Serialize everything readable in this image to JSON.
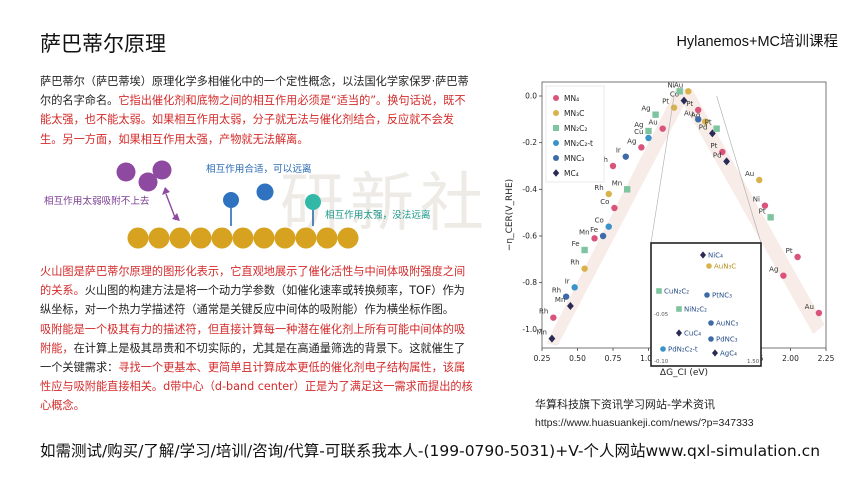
{
  "header": {
    "title": "萨巴蒂尔原理",
    "brand": "Hylanemos+MC培训课程"
  },
  "paragraph1": {
    "normal": "萨巴蒂尔（萨巴蒂埃）原理化学多相催化中的一个定性概念，以法国化学家保罗·萨巴蒂尔的名字命名。",
    "red": "它指出催化剂和底物之间的相互作用必须是“适当的”。换句话说，既不能太强，也不能太弱。如果相互作用太弱，分子就无法与催化剂结合，反应就不会发生。另一方面，如果相互作用太强，产物就无法解离。"
  },
  "illustration": {
    "label_weak": "相互作用太弱吸附不上去",
    "label_suitable": "相互作用合适，可以远离",
    "label_strong": "相互作用太强，没法远离",
    "colors": {
      "surface": "#d6a21f",
      "weak": "#8e4aa0",
      "suitable": "#2f72c0",
      "strong": "#33b8a8",
      "label_blue": "#2a6ab3",
      "label_purple": "#7b3d91",
      "label_teal": "#1f9a8c"
    }
  },
  "paragraph2": {
    "red1": "火山图是萨巴蒂尔原理的图形化表示，它直观地展示了催化活性与中间体吸附强度之间的关系。",
    "normal1": "火山图的构建方法是将一个动力学参数（如催化速率或转换频率，TOF）作为纵坐标，对一个热力学描述符（通常是关键反应中间体的吸附能）作为横坐标作图。",
    "red2": "吸附能是一个极其有力的描述符，但直接计算每一种潜在催化剂上所有可能中间体的吸附能，",
    "normal2": "在计算上是极其昂贵和不切实际的，尤其是在高通量筛选的背景下。这就催生了一个关键需求：",
    "red3": "寻找一个更基本、更简单且计算成本更低的催化剂电子结构属性，该属性应与吸附能直接相关。d带中心（d-band center）正是为了满足这一需求而提出的核心概念。"
  },
  "chart_data": {
    "type": "scatter",
    "xlabel": "ΔG_CI (eV)",
    "ylabel": "−η_CER(V_RHE)",
    "xlim": [
      0.25,
      2.25
    ],
    "ylim": [
      -1.08,
      0.06
    ],
    "xticks": [
      "0.25",
      "0.50",
      "0.75",
      "1.00",
      "1.25",
      "1.50",
      "1.75",
      "2.00",
      "2.25"
    ],
    "yticks": [
      "0.0",
      "-0.2",
      "-0.4",
      "-0.6",
      "-0.8",
      "-1.0"
    ],
    "legend": [
      {
        "name": "MN4",
        "label": "MN₄",
        "color": "#d9537a",
        "marker": "circle"
      },
      {
        "name": "MN3C",
        "label": "MN₃C",
        "color": "#d8b24a",
        "marker": "circle"
      },
      {
        "name": "MN2C2",
        "label": "MN₂C₂",
        "color": "#7fc4a0",
        "marker": "square"
      },
      {
        "name": "MN2C2-t",
        "label": "MN₂C₂-t",
        "color": "#3a93c9",
        "marker": "circle"
      },
      {
        "name": "MNC3",
        "label": "MNC₃",
        "color": "#3f6aa8",
        "marker": "circle"
      },
      {
        "name": "MC4",
        "label": "MC₄",
        "color": "#2b2a55",
        "marker": "diamond"
      }
    ],
    "points": [
      {
        "s": "MC4",
        "x": 0.32,
        "y": -1.04,
        "t": "Mn"
      },
      {
        "s": "MN4",
        "x": 0.33,
        "y": -0.95,
        "t": "Rh"
      },
      {
        "s": "MNC3",
        "x": 0.42,
        "y": -0.86,
        "t": "Rh"
      },
      {
        "s": "MC4",
        "x": 0.45,
        "y": -0.9,
        "t": "Mn"
      },
      {
        "s": "MN2C2-t",
        "x": 0.48,
        "y": -0.82,
        "t": "Ir"
      },
      {
        "s": "MN3C",
        "x": 0.55,
        "y": -0.74,
        "t": "Rh"
      },
      {
        "s": "MN2C2",
        "x": 0.55,
        "y": -0.66,
        "t": "Fe"
      },
      {
        "s": "MN4",
        "x": 0.62,
        "y": -0.61,
        "t": "Mn"
      },
      {
        "s": "MNC3",
        "x": 0.68,
        "y": -0.6,
        "t": "Fe"
      },
      {
        "s": "MN2C2-t",
        "x": 0.72,
        "y": -0.56,
        "t": "Co"
      },
      {
        "s": "MN4",
        "x": 0.76,
        "y": -0.48,
        "t": "Co"
      },
      {
        "s": "MN3C",
        "x": 0.72,
        "y": -0.42,
        "t": "Rh"
      },
      {
        "s": "MN2C2",
        "x": 0.85,
        "y": -0.4,
        "t": "Mn"
      },
      {
        "s": "MN4",
        "x": 0.75,
        "y": -0.3,
        "t": "Rh"
      },
      {
        "s": "MNC3",
        "x": 0.84,
        "y": -0.26,
        "t": "Ir"
      },
      {
        "s": "MN4",
        "x": 0.95,
        "y": -0.22,
        "t": "Ag"
      },
      {
        "s": "MN2C2-t",
        "x": 1.0,
        "y": -0.18,
        "t": "Cu"
      },
      {
        "s": "MN2C2",
        "x": 1.0,
        "y": -0.15,
        "t": "Ag"
      },
      {
        "s": "MN4",
        "x": 1.1,
        "y": -0.14,
        "t": "Au"
      },
      {
        "s": "MN2C2",
        "x": 1.05,
        "y": -0.08,
        "t": "Ag"
      },
      {
        "s": "MN3C",
        "x": 1.18,
        "y": -0.05,
        "t": "Pt"
      },
      {
        "s": "MC4",
        "x": 1.25,
        "y": -0.02,
        "t": "Co"
      },
      {
        "s": "MN2C2",
        "x": 1.22,
        "y": 0.02,
        "t": "Ni"
      },
      {
        "s": "MN3C",
        "x": 1.28,
        "y": 0.02,
        "t": "Au"
      },
      {
        "s": "MN4",
        "x": 1.35,
        "y": -0.06,
        "t": "Pt"
      },
      {
        "s": "MN3C",
        "x": 1.4,
        "y": -0.11,
        "t": "Ag"
      },
      {
        "s": "MNC3",
        "x": 1.35,
        "y": -0.1,
        "t": "Au"
      },
      {
        "s": "MC4",
        "x": 1.45,
        "y": -0.16,
        "t": "Pd"
      },
      {
        "s": "MN2C2",
        "x": 1.48,
        "y": -0.14,
        "t": "Pt"
      },
      {
        "s": "MN4",
        "x": 1.52,
        "y": -0.24,
        "t": "Pt"
      },
      {
        "s": "MC4",
        "x": 1.55,
        "y": -0.28,
        "t": "Pd"
      },
      {
        "s": "MN3C",
        "x": 1.78,
        "y": -0.36,
        "t": "Au"
      },
      {
        "s": "MN4",
        "x": 1.82,
        "y": -0.47,
        "t": "Ni"
      },
      {
        "s": "MN2C2",
        "x": 1.86,
        "y": -0.52,
        "t": "Pt"
      },
      {
        "s": "MN4",
        "x": 2.05,
        "y": -0.69,
        "t": "Pt"
      },
      {
        "s": "MN4",
        "x": 1.95,
        "y": -0.77,
        "t": "Ag"
      },
      {
        "s": "MN4",
        "x": 2.2,
        "y": -0.93,
        "t": "Au"
      }
    ],
    "inset": {
      "ytick": "-0.05",
      "ytick_bottom": "-0.10",
      "xtick_right": "1.50",
      "labels": [
        {
          "s": "MC4",
          "t": "NiC₄"
        },
        {
          "s": "MN3C",
          "t": "AuN₃C"
        },
        {
          "s": "MN2C2",
          "t": "CuN₂C₂"
        },
        {
          "s": "MNC3",
          "t": "PtNC₃"
        },
        {
          "s": "MN2C2",
          "t": "NiN₂C₂"
        },
        {
          "s": "MNC3",
          "t": "AuNC₃"
        },
        {
          "s": "MC4",
          "t": "CuC₄"
        },
        {
          "s": "MNC3",
          "t": "PdNC₃"
        },
        {
          "s": "MN2C2-t",
          "t": "PdN₂C₂-t"
        },
        {
          "s": "MC4",
          "t": "AgC₄"
        }
      ]
    }
  },
  "caption": {
    "line1": "华算科技旗下资讯学习网站-学术资讯",
    "url": "https://www.huasuankeji.com/news/?p=347333"
  },
  "footer": {
    "text": "如需测试/购买/了解/学习/培训/咨询/代算-可联系我本人-(199-0790-5031)+V-个人网站www.qxl-simulation.cn"
  },
  "watermark": {
    "text": "研新社"
  }
}
